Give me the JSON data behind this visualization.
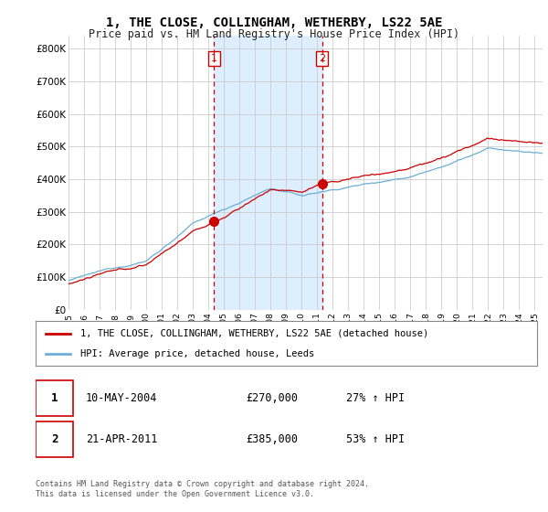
{
  "title": "1, THE CLOSE, COLLINGHAM, WETHERBY, LS22 5AE",
  "subtitle": "Price paid vs. HM Land Registry's House Price Index (HPI)",
  "ylabel_ticks": [
    "£0",
    "£100K",
    "£200K",
    "£300K",
    "£400K",
    "£500K",
    "£600K",
    "£700K",
    "£800K"
  ],
  "ytick_values": [
    0,
    100000,
    200000,
    300000,
    400000,
    500000,
    600000,
    700000,
    800000
  ],
  "ylim": [
    0,
    840000
  ],
  "xlim_start": 1995.0,
  "xlim_end": 2025.5,
  "background_color": "#ffffff",
  "plot_bg_color": "#ffffff",
  "grid_color": "#cccccc",
  "shade_color": "#ddeeff",
  "sale1_x": 2004.36,
  "sale1_y": 270000,
  "sale2_x": 2011.31,
  "sale2_y": 385000,
  "legend_line1": "1, THE CLOSE, COLLINGHAM, WETHERBY, LS22 5AE (detached house)",
  "legend_line2": "HPI: Average price, detached house, Leeds",
  "table_row1": [
    "1",
    "10-MAY-2004",
    "£270,000",
    "27% ↑ HPI"
  ],
  "table_row2": [
    "2",
    "21-APR-2011",
    "£385,000",
    "53% ↑ HPI"
  ],
  "footnote": "Contains HM Land Registry data © Crown copyright and database right 2024.\nThis data is licensed under the Open Government Licence v3.0.",
  "hpi_color": "#6baed6",
  "price_color": "#cc0000",
  "vline_color": "#cc0000",
  "marker_color": "#cc0000",
  "marker_size": 7
}
